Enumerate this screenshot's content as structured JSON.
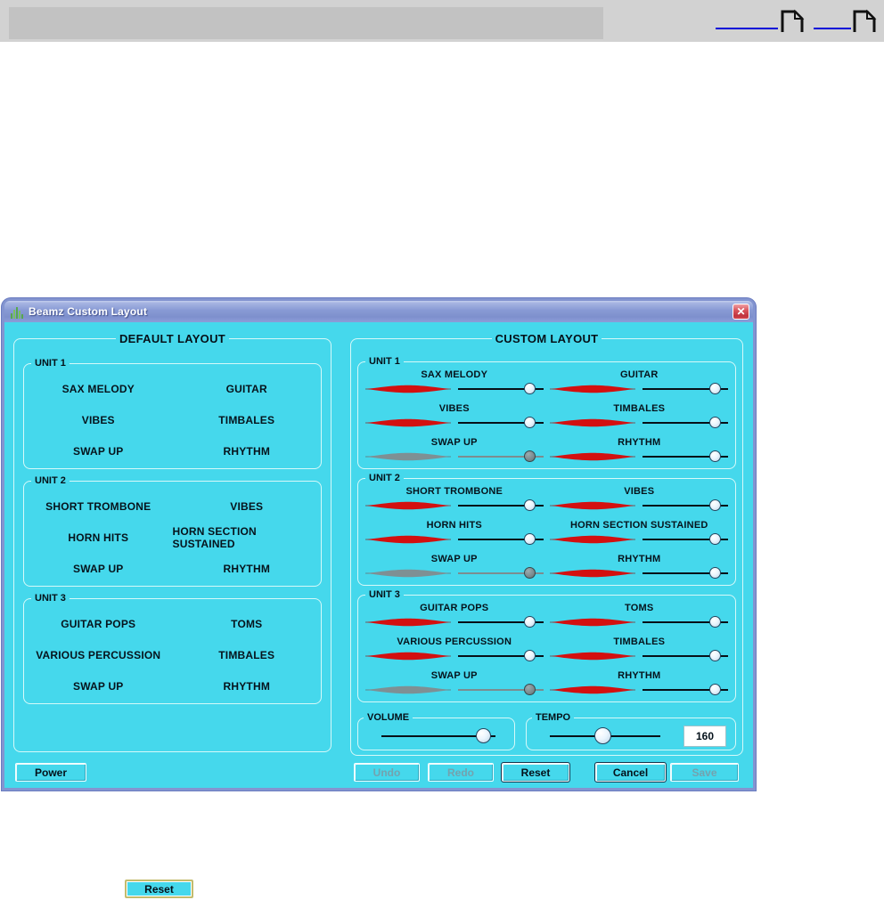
{
  "window": {
    "title": "Beamz Custom Layout",
    "close_label": "✕"
  },
  "default_layout": {
    "title": "DEFAULT LAYOUT",
    "units": [
      {
        "label": "UNIT 1",
        "instruments": [
          "SAX MELODY",
          "GUITAR",
          "VIBES",
          "TIMBALES",
          "SWAP UP",
          "RHYTHM"
        ]
      },
      {
        "label": "UNIT 2",
        "instruments": [
          "SHORT TROMBONE",
          "VIBES",
          "HORN HITS",
          "HORN SECTION SUSTAINED",
          "SWAP UP",
          "RHYTHM"
        ]
      },
      {
        "label": "UNIT 3",
        "instruments": [
          "GUITAR POPS",
          "TOMS",
          "VARIOUS PERCUSSION",
          "TIMBALES",
          "SWAP UP",
          "RHYTHM"
        ]
      }
    ]
  },
  "custom_layout": {
    "title": "CUSTOM LAYOUT",
    "units": [
      {
        "label": "UNIT 1",
        "instruments": [
          {
            "name": "SAX MELODY",
            "beam": "red",
            "slider_pct": 85
          },
          {
            "name": "GUITAR",
            "beam": "red",
            "slider_pct": 85
          },
          {
            "name": "VIBES",
            "beam": "red",
            "slider_pct": 85
          },
          {
            "name": "TIMBALES",
            "beam": "red",
            "slider_pct": 85
          },
          {
            "name": "SWAP UP",
            "beam": "gray",
            "slider_pct": 85
          },
          {
            "name": "RHYTHM",
            "beam": "red",
            "slider_pct": 85
          }
        ]
      },
      {
        "label": "UNIT 2",
        "instruments": [
          {
            "name": "SHORT TROMBONE",
            "beam": "red",
            "slider_pct": 85
          },
          {
            "name": "VIBES",
            "beam": "red",
            "slider_pct": 85
          },
          {
            "name": "HORN HITS",
            "beam": "red",
            "slider_pct": 85
          },
          {
            "name": "HORN SECTION SUSTAINED",
            "beam": "red",
            "slider_pct": 85
          },
          {
            "name": "SWAP UP",
            "beam": "gray",
            "slider_pct": 85
          },
          {
            "name": "RHYTHM",
            "beam": "red",
            "slider_pct": 85
          }
        ]
      },
      {
        "label": "UNIT 3",
        "instruments": [
          {
            "name": "GUITAR POPS",
            "beam": "red",
            "slider_pct": 85
          },
          {
            "name": "TOMS",
            "beam": "red",
            "slider_pct": 85
          },
          {
            "name": "VARIOUS PERCUSSION",
            "beam": "red",
            "slider_pct": 85
          },
          {
            "name": "TIMBALES",
            "beam": "red",
            "slider_pct": 85
          },
          {
            "name": "SWAP UP",
            "beam": "gray",
            "slider_pct": 85
          },
          {
            "name": "RHYTHM",
            "beam": "red",
            "slider_pct": 85
          }
        ]
      }
    ],
    "volume": {
      "label": "VOLUME",
      "slider_pct": 90
    },
    "tempo": {
      "label": "TEMPO",
      "slider_pct": 48,
      "value": "160"
    }
  },
  "buttons": {
    "power": {
      "label": "Power",
      "disabled": false
    },
    "undo": {
      "label": "Undo",
      "disabled": true
    },
    "redo": {
      "label": "Redo",
      "disabled": true
    },
    "reset": {
      "label": "Reset",
      "disabled": false
    },
    "cancel": {
      "label": "Cancel",
      "disabled": false
    },
    "save": {
      "label": "Save",
      "disabled": true
    }
  },
  "standalone_reset": {
    "label": "Reset"
  },
  "colors": {
    "body_cyan": "#45d8ec",
    "titlebar_blue": "#8394d0",
    "beam_red": "#d31010",
    "beam_gray": "#7e9094",
    "disabled_text": "#74a2ae",
    "link_blue": "#0008d8",
    "close_red": "#c03540"
  }
}
